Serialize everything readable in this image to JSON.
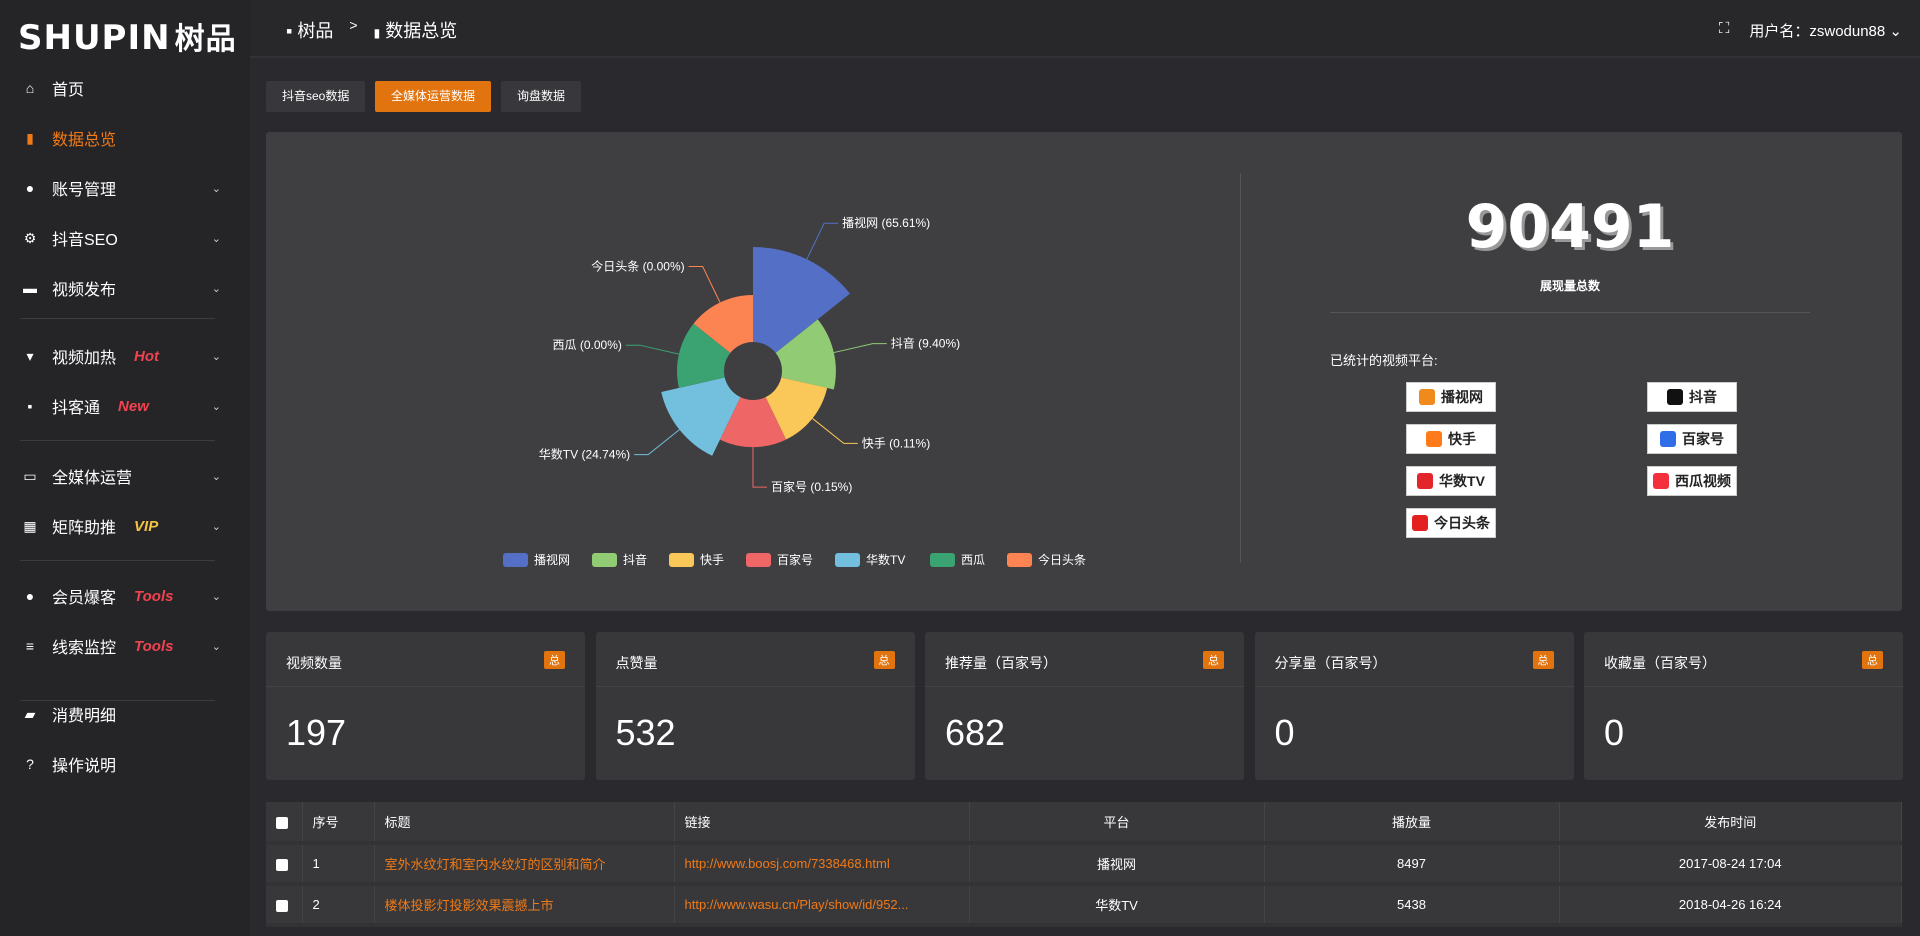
{
  "logo": {
    "text": "SHUPIN",
    "cn": "树品"
  },
  "sidebar": {
    "items": [
      {
        "label": "首页",
        "icon": "home-icon",
        "glyph": "⌂"
      },
      {
        "label": "数据总览",
        "icon": "bar-chart-icon",
        "glyph": "▮",
        "active": true
      },
      {
        "label": "账号管理",
        "icon": "user-icon",
        "glyph": "●",
        "chev": true
      },
      {
        "label": "抖音SEO",
        "icon": "gear-icon",
        "glyph": "⚙",
        "chev": true
      },
      {
        "label": "视频发布",
        "icon": "video-camera-icon",
        "glyph": "▬",
        "chev": true
      },
      {
        "label": "视频加热",
        "icon": "heater-icon",
        "glyph": "▾",
        "chev": true,
        "tag": "Hot",
        "tagColor": "#f0434f"
      },
      {
        "label": "抖客通",
        "icon": "chat-icon",
        "glyph": "▪",
        "chev": true,
        "tag": "New",
        "tagColor": "#f0434f"
      },
      {
        "label": "全媒体运营",
        "icon": "monitor-icon",
        "glyph": "▭",
        "chev": true
      },
      {
        "label": "矩阵助推",
        "icon": "grid-icon",
        "glyph": "▦",
        "chev": true,
        "tag": "VIP",
        "tagColor": "#f6c343"
      },
      {
        "label": "会员爆客",
        "icon": "user-icon",
        "glyph": "●",
        "chev": true,
        "tag": "Tools",
        "tagColor": "#f0434f"
      },
      {
        "label": "线索监控",
        "icon": "sliders-icon",
        "glyph": "≡",
        "chev": true,
        "tag": "Tools",
        "tagColor": "#f0434f"
      },
      {
        "label": "消费明细",
        "icon": "wallet-icon",
        "glyph": "▰"
      },
      {
        "label": "操作说明",
        "icon": "help-icon",
        "glyph": "?"
      }
    ]
  },
  "breadcrumb": {
    "home": "树品",
    "sep": ">",
    "current": "数据总览"
  },
  "user": {
    "label": "用户名：zswodun88"
  },
  "tabs": [
    {
      "label": "抖音seo数据"
    },
    {
      "label": "全媒体运营数据",
      "active": true
    },
    {
      "label": "询盘数据"
    }
  ],
  "chart_data": {
    "type": "pie",
    "rose": true,
    "series": [
      {
        "name": "播视网",
        "value": 65.61,
        "color": "#5470c6"
      },
      {
        "name": "抖音",
        "value": 9.4,
        "color": "#91cc75"
      },
      {
        "name": "快手",
        "value": 0.11,
        "color": "#fac858"
      },
      {
        "name": "百家号",
        "value": 0.15,
        "color": "#ee6666"
      },
      {
        "name": "华数TV",
        "value": 24.74,
        "color": "#73c0de"
      },
      {
        "name": "西瓜",
        "value": 0.0,
        "color": "#3ba272"
      },
      {
        "name": "今日头条",
        "value": 0.0,
        "color": "#fc8452"
      }
    ],
    "legend": "bottom"
  },
  "summary": {
    "total": "90491",
    "total_label": "展现量总数",
    "platforms_label": "已统计的视频平台:",
    "platforms": [
      {
        "name": "播视网",
        "color": "#f08a1c"
      },
      {
        "name": "抖音",
        "color": "#111"
      },
      {
        "name": "快手",
        "color": "#ff7a1a"
      },
      {
        "name": "百家号",
        "color": "#2f6ee6"
      },
      {
        "name": "华数TV",
        "color": "#e3262c"
      },
      {
        "name": "西瓜视频",
        "color": "#f4303e"
      },
      {
        "name": "今日头条",
        "color": "#e42121"
      }
    ]
  },
  "stats": [
    {
      "title": "视频数量",
      "badge": "总",
      "value": "197"
    },
    {
      "title": "点赞量",
      "badge": "总",
      "value": "532"
    },
    {
      "title": "推荐量（百家号）",
      "badge": "总",
      "value": "682"
    },
    {
      "title": "分享量（百家号）",
      "badge": "总",
      "value": "0"
    },
    {
      "title": "收藏量（百家号）",
      "badge": "总",
      "value": "0"
    }
  ],
  "table": {
    "headers": [
      "序号",
      "标题",
      "链接",
      "平台",
      "播放量",
      "发布时间"
    ],
    "rows": [
      [
        "1",
        "室外水纹灯和室内水纹灯的区别和简介",
        "http://www.boosj.com/7338468.html",
        "播视网",
        "8497",
        "2017-08-24 17:04"
      ],
      [
        "2",
        "楼体投影灯投影效果震撼上市",
        "http://www.wasu.cn/Play/show/id/952...",
        "华数TV",
        "5438",
        "2018-04-26 16:24"
      ]
    ]
  }
}
